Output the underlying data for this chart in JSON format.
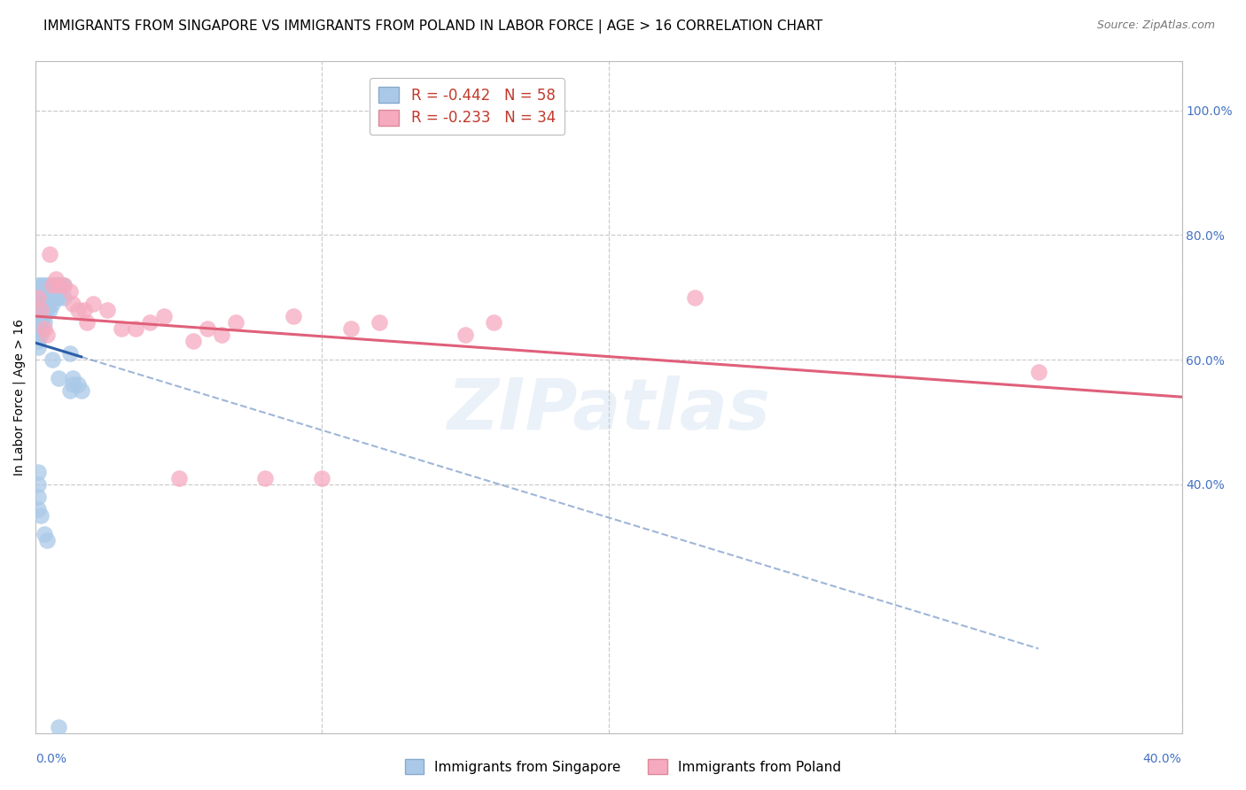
{
  "title": "IMMIGRANTS FROM SINGAPORE VS IMMIGRANTS FROM POLAND IN LABOR FORCE | AGE > 16 CORRELATION CHART",
  "source": "Source: ZipAtlas.com",
  "ylabel": "In Labor Force | Age > 16",
  "singapore_R": -0.442,
  "singapore_N": 58,
  "poland_R": -0.233,
  "poland_N": 34,
  "singapore_color": "#aac9e8",
  "poland_color": "#f5aabf",
  "singapore_line_color": "#2c5ea8",
  "poland_line_color": "#e0607a",
  "background_color": "#ffffff",
  "grid_color": "#cccccc",
  "right_tick_color": "#4472c4",
  "xlim": [
    0.0,
    0.4
  ],
  "ylim": [
    0.0,
    1.08
  ],
  "y_ticks": [
    1.0,
    0.8,
    0.6,
    0.4
  ],
  "y_tick_labels": [
    "100.0%",
    "80.0%",
    "60.0%",
    "40.0%"
  ],
  "singapore_x": [
    0.001,
    0.001,
    0.001,
    0.001,
    0.001,
    0.001,
    0.001,
    0.001,
    0.001,
    0.001,
    0.002,
    0.002,
    0.002,
    0.002,
    0.002,
    0.002,
    0.002,
    0.002,
    0.003,
    0.003,
    0.003,
    0.003,
    0.003,
    0.003,
    0.004,
    0.004,
    0.004,
    0.004,
    0.005,
    0.005,
    0.005,
    0.005,
    0.006,
    0.006,
    0.006,
    0.007,
    0.007,
    0.008,
    0.008,
    0.009,
    0.01,
    0.01,
    0.012,
    0.013,
    0.013,
    0.015,
    0.016,
    0.001,
    0.001,
    0.006,
    0.008,
    0.012,
    0.001,
    0.001,
    0.002,
    0.003,
    0.004,
    0.008
  ],
  "singapore_y": [
    0.72,
    0.7,
    0.69,
    0.68,
    0.67,
    0.66,
    0.65,
    0.64,
    0.63,
    0.62,
    0.72,
    0.7,
    0.69,
    0.68,
    0.67,
    0.66,
    0.65,
    0.64,
    0.72,
    0.7,
    0.69,
    0.68,
    0.67,
    0.66,
    0.72,
    0.7,
    0.69,
    0.68,
    0.72,
    0.7,
    0.69,
    0.68,
    0.72,
    0.7,
    0.69,
    0.72,
    0.7,
    0.72,
    0.7,
    0.72,
    0.72,
    0.7,
    0.61,
    0.57,
    0.56,
    0.56,
    0.55,
    0.42,
    0.4,
    0.6,
    0.57,
    0.55,
    0.38,
    0.36,
    0.35,
    0.32,
    0.31,
    0.01
  ],
  "poland_x": [
    0.001,
    0.002,
    0.003,
    0.004,
    0.005,
    0.006,
    0.007,
    0.008,
    0.01,
    0.012,
    0.013,
    0.015,
    0.017,
    0.018,
    0.02,
    0.025,
    0.03,
    0.035,
    0.04,
    0.045,
    0.05,
    0.055,
    0.06,
    0.065,
    0.07,
    0.08,
    0.09,
    0.1,
    0.11,
    0.12,
    0.15,
    0.16,
    0.23,
    0.35
  ],
  "poland_y": [
    0.7,
    0.68,
    0.65,
    0.64,
    0.77,
    0.72,
    0.73,
    0.72,
    0.72,
    0.71,
    0.69,
    0.68,
    0.68,
    0.66,
    0.69,
    0.68,
    0.65,
    0.65,
    0.66,
    0.67,
    0.41,
    0.63,
    0.65,
    0.64,
    0.66,
    0.41,
    0.67,
    0.41,
    0.65,
    0.66,
    0.64,
    0.66,
    0.7,
    0.58
  ],
  "watermark": "ZIPatlas",
  "title_fontsize": 11,
  "axis_label_fontsize": 10,
  "tick_fontsize": 10,
  "legend_fontsize": 11
}
